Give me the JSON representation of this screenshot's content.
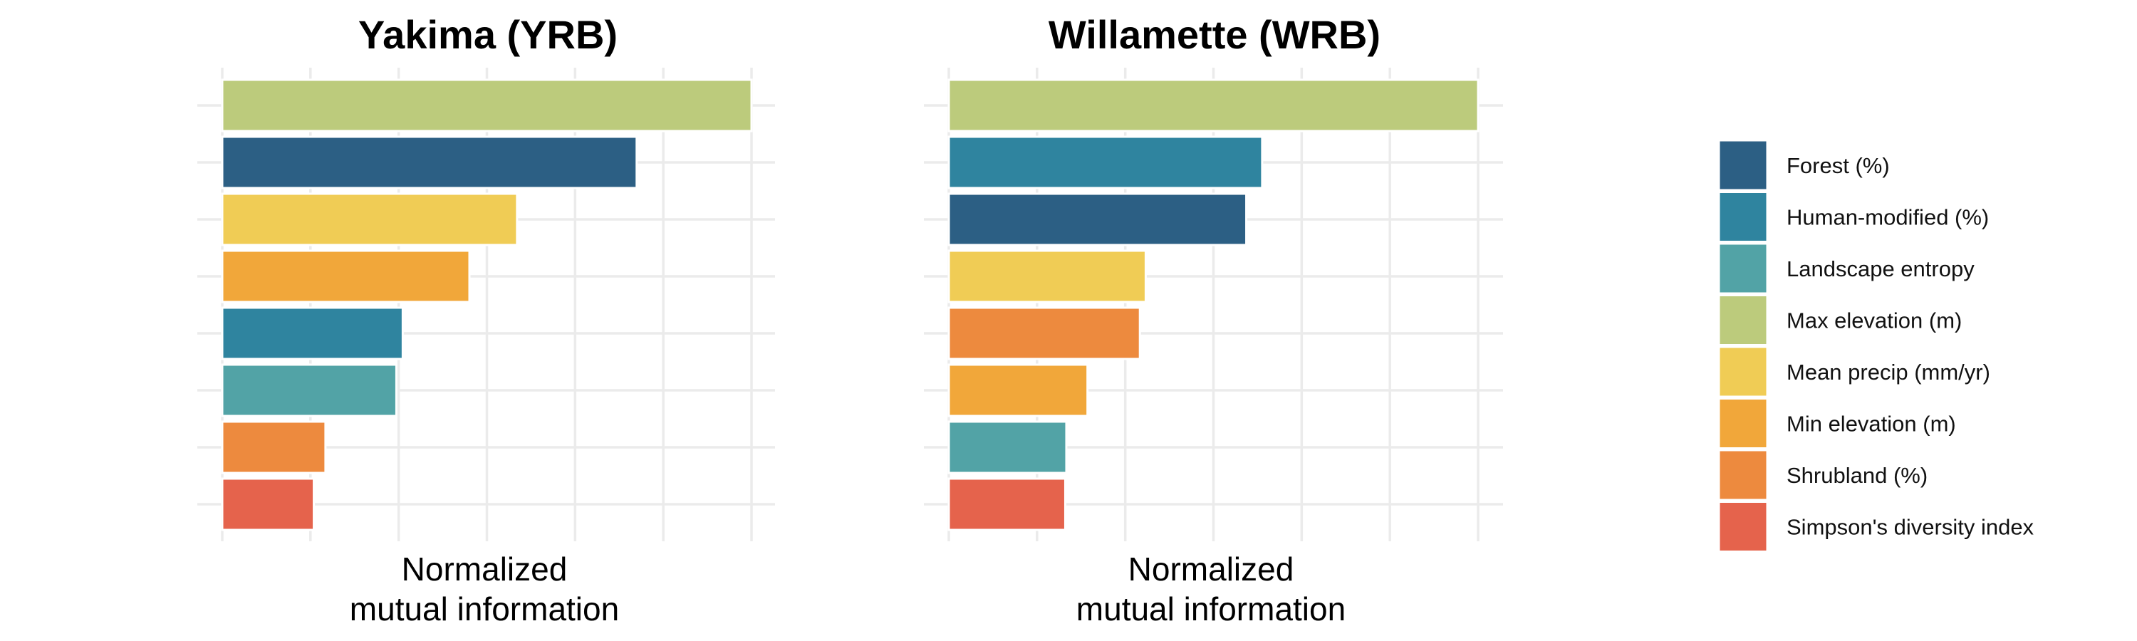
{
  "legend": {
    "items": [
      {
        "label": "Forest (%)",
        "color": "#2c5f84"
      },
      {
        "label": "Human-modified (%)",
        "color": "#2f849f"
      },
      {
        "label": "Landscape entropy",
        "color": "#52a3a6"
      },
      {
        "label": "Max elevation (m)",
        "color": "#bccb7c"
      },
      {
        "label": "Mean precip (mm/yr)",
        "color": "#f0cc55"
      },
      {
        "label": "Min elevation (m)",
        "color": "#f1a73a"
      },
      {
        "label": "Shrubland (%)",
        "color": "#ed8a3e"
      },
      {
        "label": "Simpson's diversity index",
        "color": "#e5634c"
      }
    ]
  },
  "chart_data": [
    {
      "type": "bar",
      "orientation": "horizontal",
      "title": "Yakima (YRB)",
      "xlabel": "Normalized\nmutual information",
      "ylabel": "",
      "xlim": [
        0,
        1
      ],
      "categories": [
        "Max elevation (m)",
        "Forest (%)",
        "Mean precip (mm/yr)",
        "Min elevation (m)",
        "Human-modified (%)",
        "Landscape entropy",
        "Shrubland (%)",
        "Simpson's diversity index"
      ],
      "values": [
        1.0,
        0.783,
        0.557,
        0.467,
        0.341,
        0.329,
        0.195,
        0.173
      ],
      "grid": true,
      "legend_position": "right"
    },
    {
      "type": "bar",
      "orientation": "horizontal",
      "title": "Willamette (WRB)",
      "xlabel": "Normalized\nmutual information",
      "ylabel": "",
      "xlim": [
        0,
        1
      ],
      "categories": [
        "Max elevation (m)",
        "Human-modified (%)",
        "Forest (%)",
        "Mean precip (mm/yr)",
        "Shrubland (%)",
        "Min elevation (m)",
        "Landscape entropy",
        "Simpson's diversity index"
      ],
      "values": [
        1.0,
        0.592,
        0.562,
        0.372,
        0.361,
        0.262,
        0.222,
        0.22
      ],
      "grid": true,
      "legend_position": "right"
    }
  ]
}
